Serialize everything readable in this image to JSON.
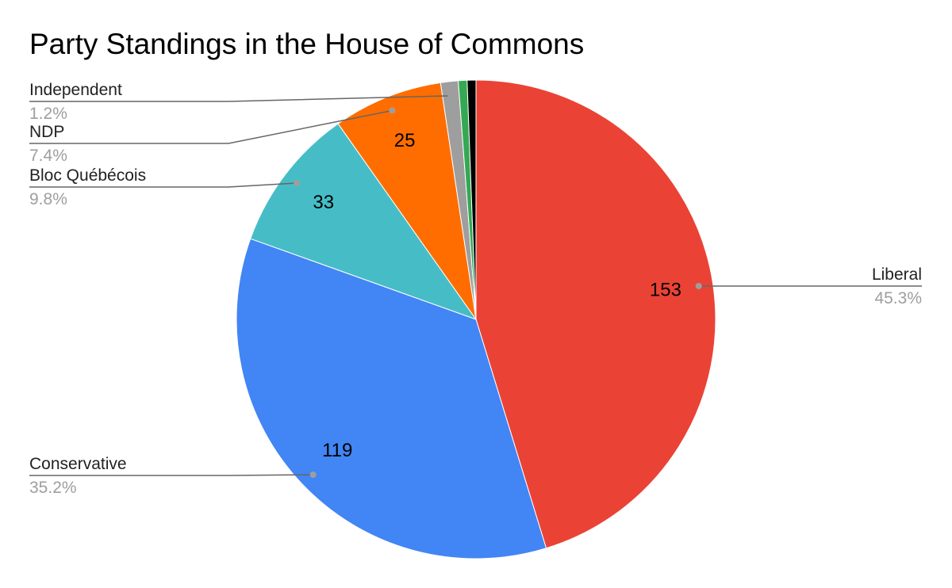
{
  "chart_data": {
    "type": "pie",
    "title": "Party Standings in the House of Commons",
    "categories": [
      "Liberal",
      "Conservative",
      "Bloc Québécois",
      "NDP",
      "Independent",
      null,
      null
    ],
    "values": [
      153,
      119,
      33,
      25,
      4,
      2,
      2
    ],
    "percent_labels": [
      "45.3%",
      "35.2%",
      "9.8%",
      "7.4%",
      "1.2%",
      null,
      null
    ],
    "colors": [
      "#ea4335",
      "#4285f4",
      "#46bdc6",
      "#ff6d01",
      "#9e9e9e",
      "#34a853",
      "#000000"
    ]
  }
}
